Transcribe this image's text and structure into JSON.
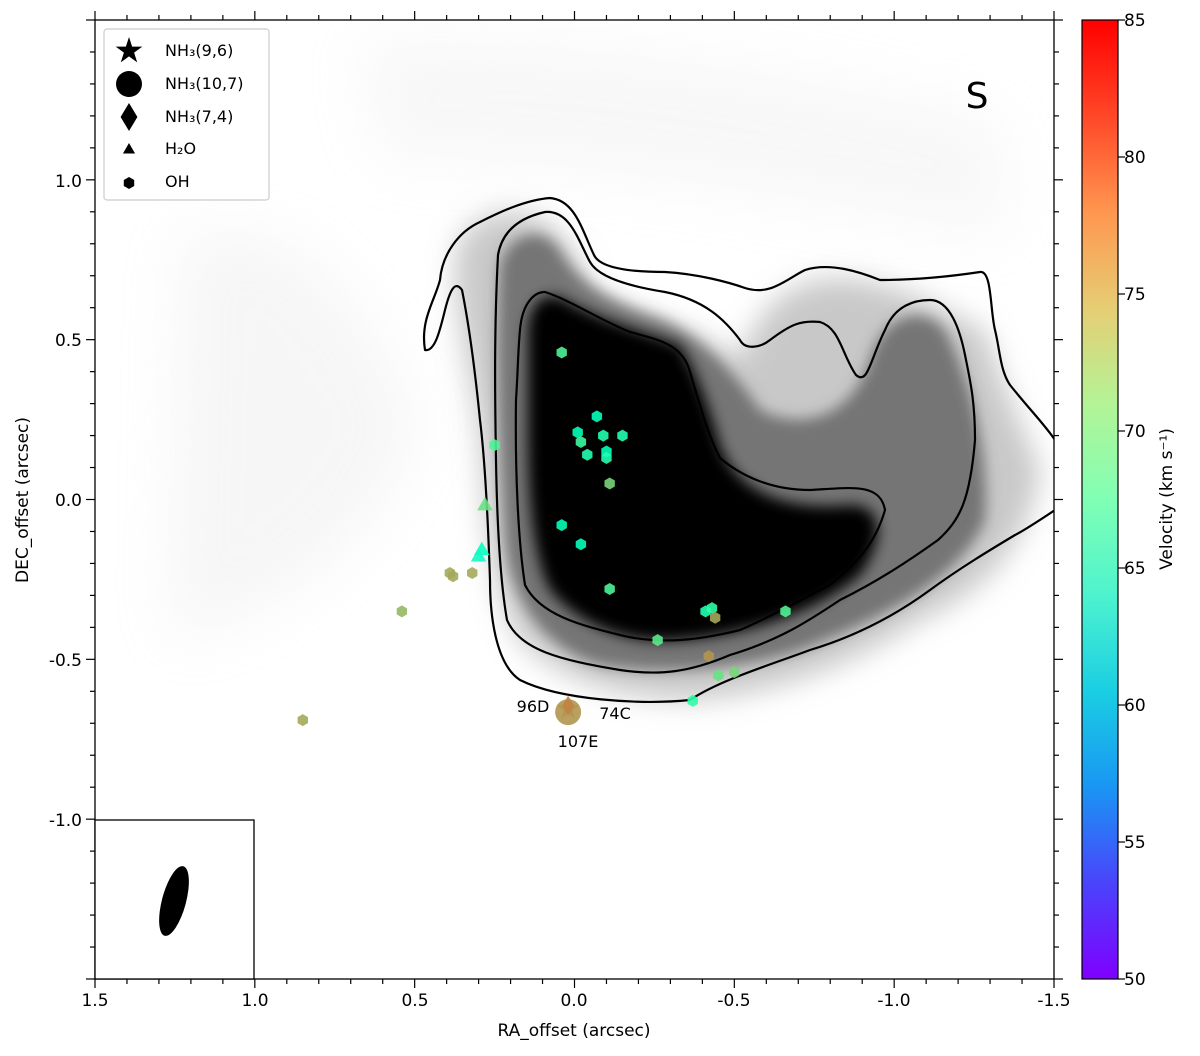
{
  "chart_data": {
    "type": "scatter",
    "panel_label": "S",
    "xlabel": "RA_offset (arcsec)",
    "ylabel": "DEC_offset (arcsec)",
    "xlim": [
      1.5,
      -1.5
    ],
    "ylim": [
      -1.5,
      1.5
    ],
    "x_ticks": [
      "1.5",
      "1.0",
      "0.5",
      "0.0",
      "-0.5",
      "-1.0",
      "-1.5"
    ],
    "y_ticks": [
      "1.0",
      "0.5",
      "0.0",
      "-0.5",
      "-1.0"
    ],
    "colorbar": {
      "label": "Velocity (km s⁻¹)",
      "min": 50,
      "max": 85,
      "ticks": [
        "50",
        "55",
        "60",
        "65",
        "70",
        "75",
        "80",
        "85"
      ],
      "colormap": "rainbow"
    },
    "legend": [
      {
        "label": "NH₃(9,6)",
        "marker": "star"
      },
      {
        "label": "NH₃(10,7)",
        "marker": "circle"
      },
      {
        "label": "NH₃(7,4)",
        "marker": "diamond"
      },
      {
        "label": "H₂O",
        "marker": "triangle"
      },
      {
        "label": "OH",
        "marker": "hexagon"
      }
    ],
    "annotations": [
      {
        "text": "96D",
        "x": 0.18,
        "y": -0.64
      },
      {
        "text": "74C",
        "x": -0.13,
        "y": -0.665
      },
      {
        "text": "107E",
        "x": 0.015,
        "y": -0.755
      }
    ],
    "contour_levels": 4,
    "beam": {
      "x": 1.25,
      "y": -1.25
    },
    "series": [
      {
        "name": "OH",
        "marker": "hexagon",
        "points": [
          {
            "x": 0.04,
            "y": 0.46,
            "v": 71
          },
          {
            "x": -0.07,
            "y": 0.26,
            "v": 67
          },
          {
            "x": -0.01,
            "y": 0.21,
            "v": 67
          },
          {
            "x": -0.09,
            "y": 0.2,
            "v": 68
          },
          {
            "x": -0.15,
            "y": 0.2,
            "v": 68
          },
          {
            "x": -0.02,
            "y": 0.18,
            "v": 70
          },
          {
            "x": -0.04,
            "y": 0.14,
            "v": 68
          },
          {
            "x": -0.1,
            "y": 0.15,
            "v": 67
          },
          {
            "x": -0.1,
            "y": 0.13,
            "v": 68
          },
          {
            "x": 0.25,
            "y": 0.17,
            "v": 71
          },
          {
            "x": -0.11,
            "y": 0.05,
            "v": 74
          },
          {
            "x": 0.04,
            "y": -0.08,
            "v": 67
          },
          {
            "x": -0.02,
            "y": -0.14,
            "v": 67
          },
          {
            "x": -0.11,
            "y": -0.28,
            "v": 71
          },
          {
            "x": -0.41,
            "y": -0.35,
            "v": 68
          },
          {
            "x": -0.43,
            "y": -0.34,
            "v": 69
          },
          {
            "x": -0.44,
            "y": -0.37,
            "v": 77
          },
          {
            "x": -0.66,
            "y": -0.35,
            "v": 71
          },
          {
            "x": -0.26,
            "y": -0.44,
            "v": 72
          },
          {
            "x": -0.42,
            "y": -0.49,
            "v": 78
          },
          {
            "x": -0.45,
            "y": -0.55,
            "v": 73
          },
          {
            "x": -0.5,
            "y": -0.54,
            "v": 74
          },
          {
            "x": -0.37,
            "y": -0.63,
            "v": 69
          },
          {
            "x": 0.32,
            "y": -0.23,
            "v": 77
          },
          {
            "x": 0.39,
            "y": -0.23,
            "v": 77
          },
          {
            "x": 0.38,
            "y": -0.24,
            "v": 77
          },
          {
            "x": 0.54,
            "y": -0.35,
            "v": 76
          },
          {
            "x": 0.85,
            "y": -0.69,
            "v": 77
          }
        ]
      },
      {
        "name": "H2O",
        "marker": "triangle",
        "points": [
          {
            "x": 0.28,
            "y": -0.02,
            "v": 73
          },
          {
            "x": 0.29,
            "y": -0.16,
            "v": 66
          },
          {
            "x": 0.3,
            "y": -0.18,
            "v": 65
          }
        ]
      },
      {
        "name": "NH3(10,7)",
        "marker": "circle",
        "points": [
          {
            "x": 0.02,
            "y": -0.665,
            "v": 78
          }
        ]
      },
      {
        "name": "NH3(9,6)",
        "marker": "star",
        "points": [
          {
            "x": 0.02,
            "y": -0.655,
            "v": 78
          }
        ]
      },
      {
        "name": "NH3(7,4)",
        "marker": "diamond",
        "points": [
          {
            "x": 0.02,
            "y": -0.645,
            "v": 79
          }
        ]
      }
    ]
  }
}
